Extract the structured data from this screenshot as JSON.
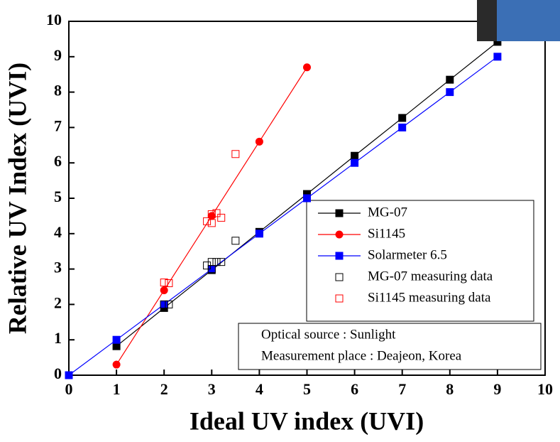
{
  "chart_data": {
    "type": "line",
    "xlabel": "Ideal UV index (UVI)",
    "ylabel": "Relative UV Index (UVI)",
    "xlim": [
      0,
      10
    ],
    "ylim": [
      0,
      10
    ],
    "xticks": [
      0,
      1,
      2,
      3,
      4,
      5,
      6,
      7,
      8,
      9,
      10
    ],
    "yticks": [
      0,
      1,
      2,
      3,
      4,
      5,
      6,
      7,
      8,
      9,
      10
    ],
    "series": [
      {
        "name": "MG-07",
        "color": "#000000",
        "marker": "square",
        "filled": true,
        "line": true,
        "x": [
          1,
          2,
          3,
          4,
          5,
          6,
          7,
          8,
          9
        ],
        "values": [
          0.82,
          1.9,
          2.97,
          4.05,
          5.12,
          6.2,
          7.27,
          8.35,
          9.42
        ]
      },
      {
        "name": "Si1145",
        "color": "#ff0000",
        "marker": "circle",
        "filled": true,
        "line": true,
        "x": [
          1,
          2,
          3,
          4,
          5
        ],
        "values": [
          0.3,
          2.4,
          4.5,
          6.6,
          8.7
        ]
      },
      {
        "name": "Solarmeter 6.5",
        "color": "#0000ff",
        "marker": "square",
        "filled": true,
        "line": true,
        "x": [
          0,
          1,
          2,
          3,
          4,
          5,
          6,
          7,
          8,
          9
        ],
        "values": [
          0,
          1,
          2,
          3,
          4,
          5,
          6,
          7,
          8,
          9
        ]
      },
      {
        "name": "MG-07 measuring data",
        "color": "#000000",
        "marker": "square",
        "filled": false,
        "line": false,
        "x": [
          2,
          2.1,
          2.9,
          3,
          3.1,
          3.2,
          3,
          3.5
        ],
        "values": [
          2,
          2,
          3.1,
          3.2,
          3.2,
          3.2,
          3.0,
          3.8
        ]
      },
      {
        "name": "Si1145 measuring data",
        "color": "#ff0000",
        "marker": "square",
        "filled": false,
        "line": false,
        "x": [
          2,
          2.1,
          2.9,
          3,
          3.1,
          3.2,
          3,
          3.5
        ],
        "values": [
          2.62,
          2.6,
          4.35,
          4.55,
          4.58,
          4.45,
          4.3,
          6.25
        ]
      }
    ],
    "annotations": [
      "Optical source : Sunlight",
      "Measurement place : Deajeon, Korea"
    ]
  }
}
